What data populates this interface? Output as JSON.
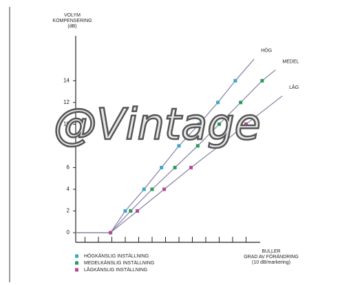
{
  "chart_data": {
    "type": "line",
    "y_label": [
      "VOLYM",
      "KOMPENSERING",
      "(dB)"
    ],
    "x_label": [
      "BULLER",
      "GRAD AV FÖRÄNDRING",
      "(10 dB/markering)"
    ],
    "xlim": [
      0,
      16
    ],
    "xticks": [
      1,
      2,
      3,
      4,
      5,
      6,
      7,
      8,
      9,
      10,
      11,
      12,
      13
    ],
    "ylim": [
      0,
      17
    ],
    "yticks": [
      0,
      2,
      4,
      6,
      8,
      10,
      12,
      14
    ],
    "line_color": "#8d86a8",
    "series": [
      {
        "name": "HÖG",
        "legend": "HÖGKÄNSLIG INSTÄLLNING",
        "color": "#3aa6c9",
        "x": [
          0.3,
          2.9,
          4,
          5.4,
          6.7,
          8,
          9.5,
          10.9,
          12.2,
          13.6
        ],
        "values": [
          0,
          0,
          2,
          4,
          6,
          8,
          10,
          12,
          14,
          16
        ]
      },
      {
        "name": "MEDEL",
        "legend": "MEDELKÄNSLIG INSTÄLLNING",
        "color": "#2a9a5a",
        "x": [
          0.3,
          2.9,
          4.4,
          6,
          7.7,
          9.4,
          11,
          12.6,
          14.2,
          15.2
        ],
        "values": [
          0,
          0,
          2,
          4,
          6,
          8,
          10,
          12,
          14,
          15
        ]
      },
      {
        "name": "LÅG",
        "legend": "LÅGKÄNSLIG INSTÄLLNING",
        "color": "#b5479a",
        "x": [
          0.3,
          2.9,
          4.9,
          6.9,
          8.9,
          11,
          13,
          15.7
        ],
        "values": [
          0,
          0,
          2,
          4,
          6,
          8,
          10,
          12.6
        ]
      }
    ],
    "watermark": "@Vintage"
  }
}
